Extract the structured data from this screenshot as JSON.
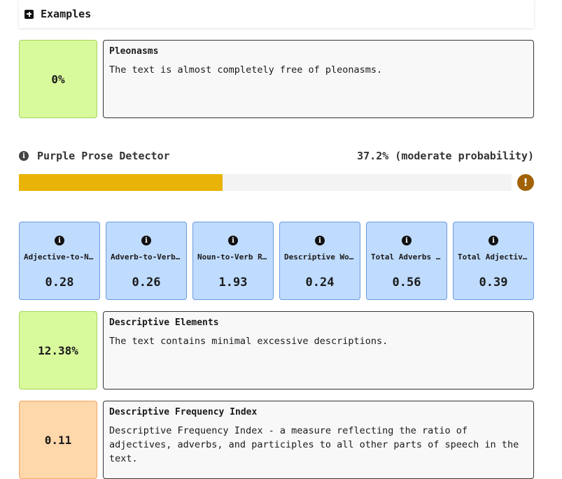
{
  "examples": {
    "label": "Examples"
  },
  "pleonasms": {
    "score": "0%",
    "title": "Pleonasms",
    "text": "The text is almost completely free of pleonasms."
  },
  "detector": {
    "title": "Purple Prose Detector",
    "value": "37.2% (moderate probability)",
    "progress_fraction": 0.372
  },
  "stats": [
    {
      "label": "Adjective-to-Noun Ratio",
      "value": "0.28"
    },
    {
      "label": "Adverb-to-Verb Ratio",
      "value": "0.26"
    },
    {
      "label": "Noun-to-Verb Ratio",
      "value": "1.93"
    },
    {
      "label": "Descriptive Words Ratio",
      "value": "0.24"
    },
    {
      "label": "Total Adverbs Ratio",
      "value": "0.56"
    },
    {
      "label": "Total Adjectives Ratio",
      "value": "0.39"
    }
  ],
  "descriptive_elements": {
    "score": "12.38%",
    "title": "Descriptive Elements",
    "text": "The text contains minimal excessive descriptions."
  },
  "descriptive_frequency": {
    "score": "0.11",
    "title": "Descriptive Frequency Index",
    "text": "Descriptive Frequency Index - a measure reflecting the ratio of adjectives, adverbs, and participles to all other parts of speech in the text."
  },
  "colors": {
    "score_green": "#d9f99d",
    "score_orange": "#fed7aa",
    "stat_blue": "#bfdbfe",
    "progress_yellow": "#eab308",
    "warning_brown": "#a16207"
  }
}
